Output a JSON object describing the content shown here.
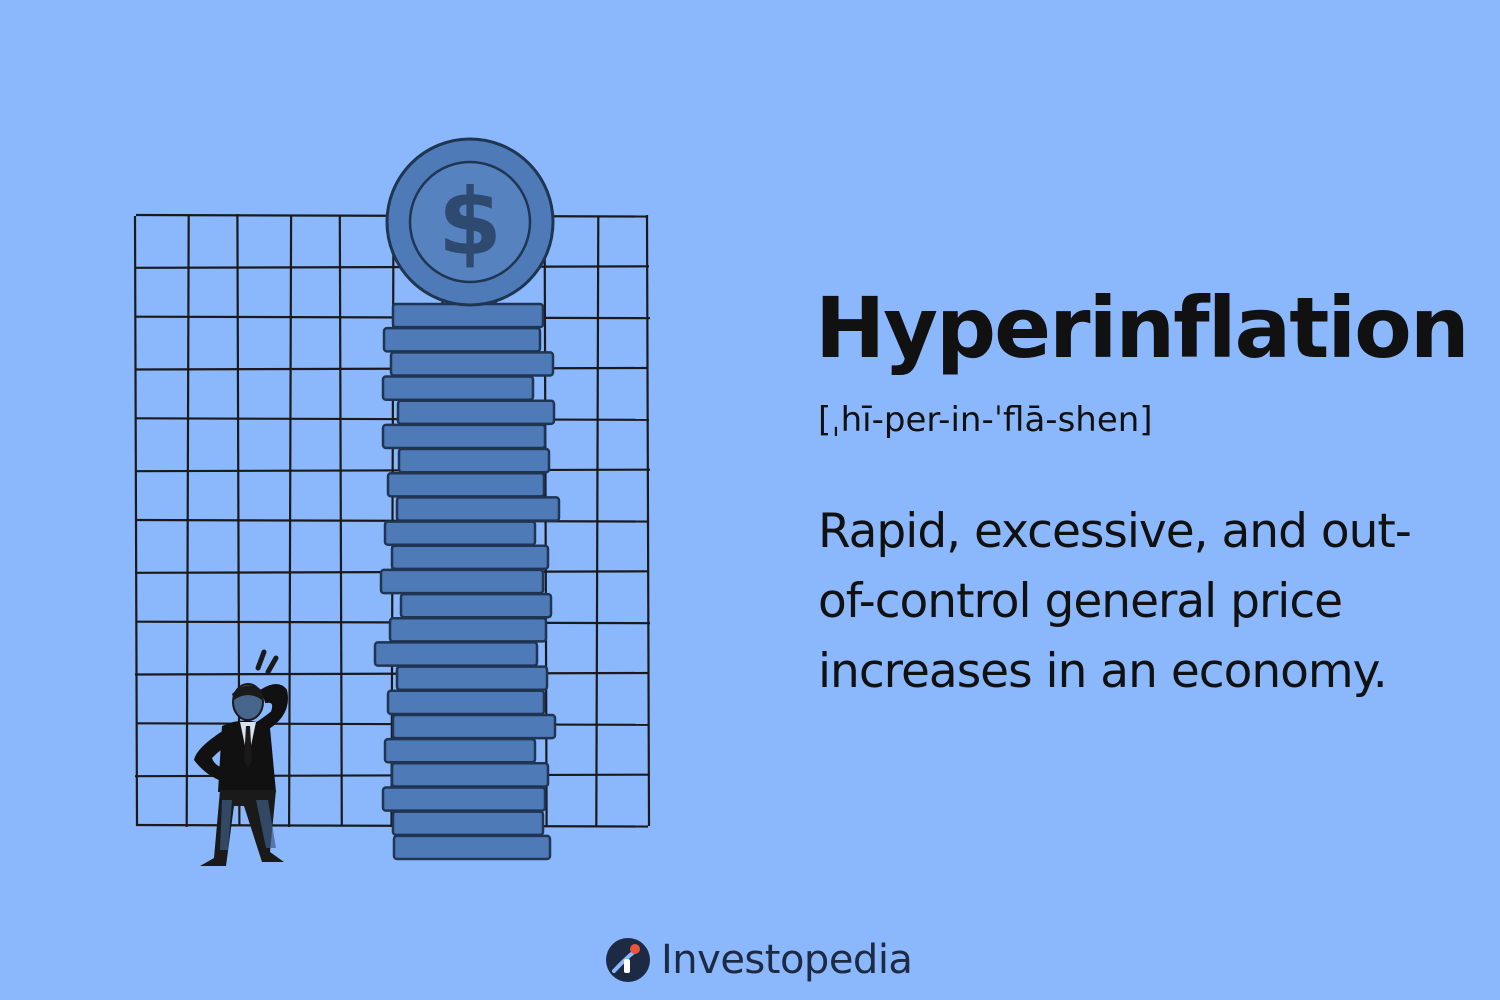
{
  "term": {
    "title": "Hyperinflation",
    "pronunciation": "[ˌhī-per-in-ˈflā-shen]",
    "definition": "Rapid, excessive, and out-of-control general price increases in an economy."
  },
  "illustration": {
    "coin_symbol": "$",
    "coin_color": "#4e7ab8",
    "coin_edge_color": "#1f3552",
    "grid_color": "#1a1a1a"
  },
  "brand": {
    "name": "Investopedia",
    "logo_icon": "investopedia-logo-icon",
    "text_color": "#1c2a44",
    "accent_color": "#e8553d"
  },
  "background_color": "#8bb8fd"
}
